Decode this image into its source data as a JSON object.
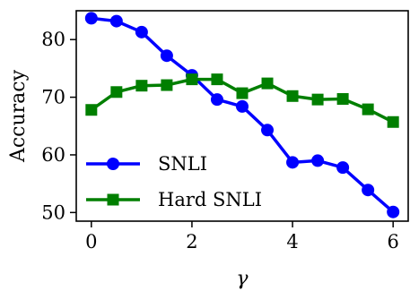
{
  "chart_data": {
    "type": "line",
    "title": "",
    "xlabel": "γ",
    "ylabel": "Accuracy",
    "xlim": [
      -0.3,
      6.3
    ],
    "ylim": [
      48.5,
      85.0
    ],
    "xticks": [
      0,
      2,
      4,
      6
    ],
    "xtick_labels": [
      "0",
      "2",
      "4",
      "6"
    ],
    "yticks": [
      50,
      60,
      70,
      80
    ],
    "ytick_labels": [
      "50",
      "60",
      "70",
      "80"
    ],
    "grid": false,
    "legend_position": "bottom-left",
    "x": [
      0,
      0.5,
      1,
      1.5,
      2,
      2.5,
      3,
      3.5,
      4,
      4.5,
      5,
      5.5,
      6
    ],
    "series": [
      {
        "name": "SNLI",
        "color": "#0000ff",
        "marker": "circle",
        "values": [
          83.7,
          83.2,
          81.3,
          77.2,
          73.8,
          69.6,
          68.4,
          64.3,
          58.7,
          59.0,
          57.8,
          53.9,
          50.1
        ]
      },
      {
        "name": "Hard SNLI",
        "color": "#007f00",
        "marker": "square",
        "values": [
          67.8,
          70.9,
          72.0,
          72.1,
          73.1,
          73.1,
          70.7,
          72.4,
          70.2,
          69.6,
          69.7,
          67.9,
          65.7
        ]
      }
    ]
  }
}
